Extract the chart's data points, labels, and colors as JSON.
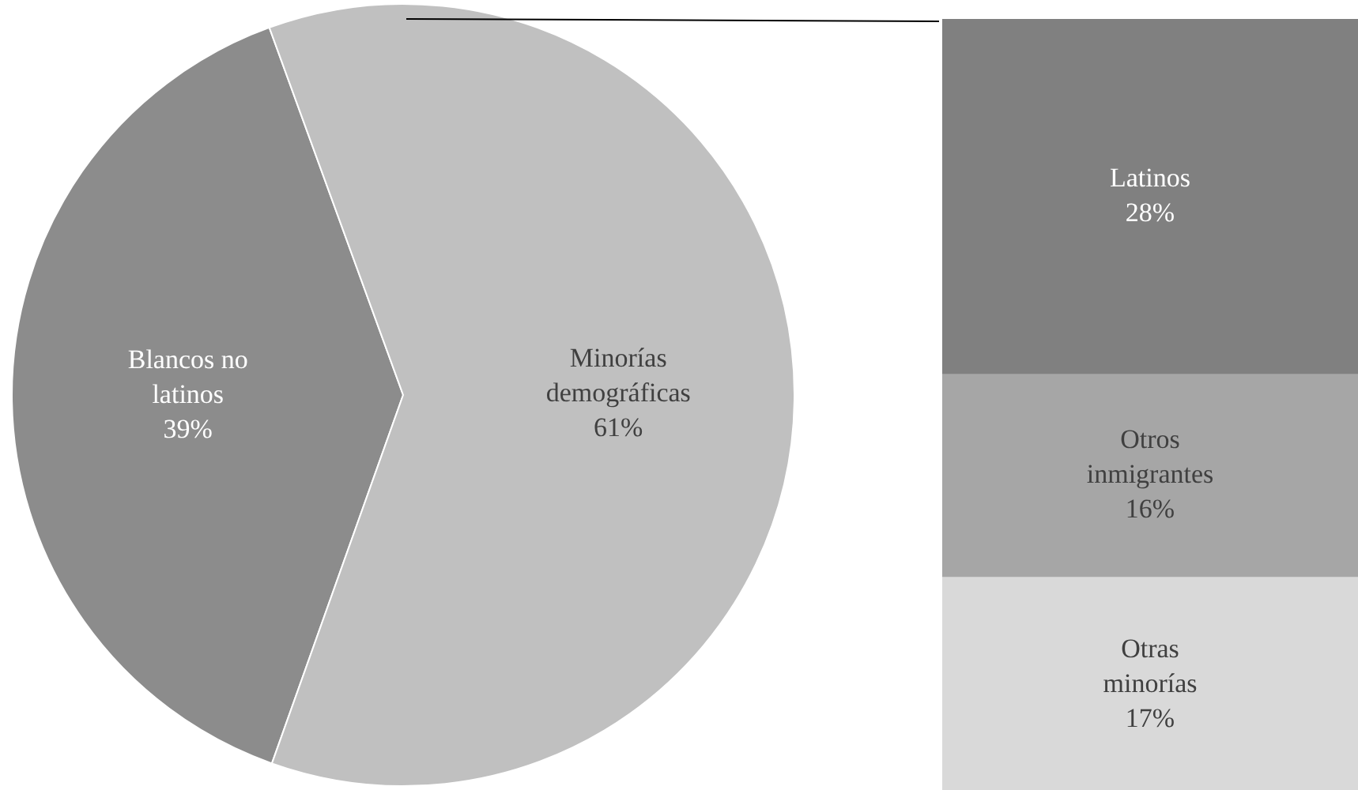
{
  "chart_data": [
    {
      "type": "pie",
      "categories": [
        "Blancos no latinos",
        "Minorías demográficas"
      ],
      "values": [
        39,
        61
      ],
      "colors": [
        "#8c8c8c",
        "#c0c0c0"
      ],
      "value_labels": [
        "39%",
        "61%"
      ]
    },
    {
      "type": "bar",
      "stacked": true,
      "tick_labels": false,
      "categories": [
        null
      ],
      "series": [
        {
          "name": "Otras minorías",
          "color": "#d9d9d9",
          "values": [
            17
          ],
          "value_labels": [
            "17%"
          ]
        },
        {
          "name": "Otros inmigrantes",
          "color": "#a6a6a6",
          "values": [
            16
          ],
          "value_labels": [
            "16%"
          ]
        },
        {
          "name": "Latinos",
          "color": "#808080",
          "values": [
            28
          ],
          "value_labels": [
            "28%"
          ]
        }
      ]
    }
  ]
}
